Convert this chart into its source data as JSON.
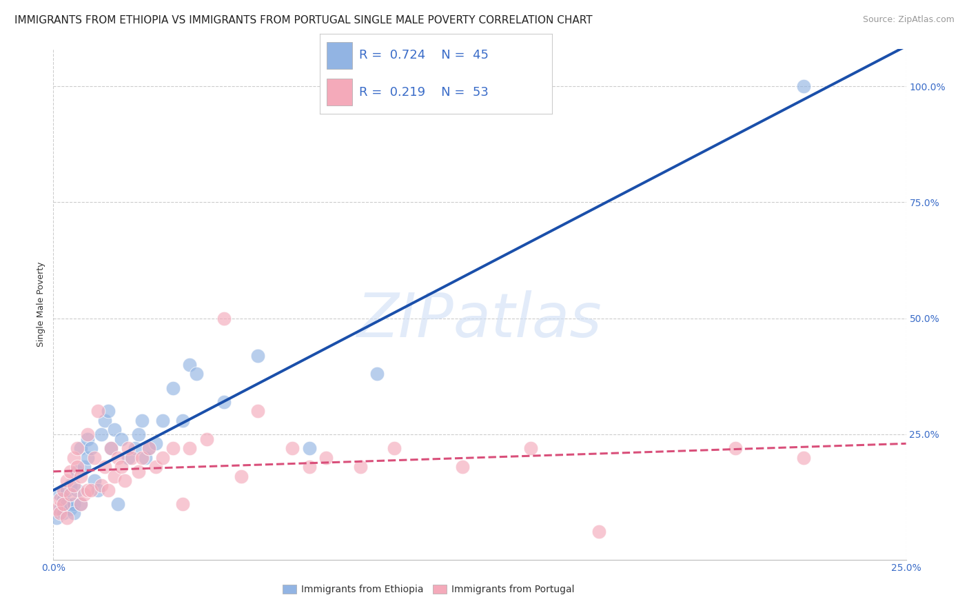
{
  "title": "IMMIGRANTS FROM ETHIOPIA VS IMMIGRANTS FROM PORTUGAL SINGLE MALE POVERTY CORRELATION CHART",
  "source": "Source: ZipAtlas.com",
  "ylabel": "Single Male Poverty",
  "xlim": [
    0.0,
    0.25
  ],
  "ylim": [
    -0.02,
    1.08
  ],
  "ytick_positions": [
    0.25,
    0.5,
    0.75,
    1.0
  ],
  "background_color": "#ffffff",
  "watermark_text": "ZIPatlas",
  "series": [
    {
      "name": "Immigrants from Ethiopia",
      "color": "#92b4e3",
      "R": 0.724,
      "N": 45,
      "line_color": "#1a4faa",
      "line_style": "solid",
      "x": [
        0.001,
        0.002,
        0.002,
        0.003,
        0.003,
        0.004,
        0.004,
        0.005,
        0.005,
        0.006,
        0.006,
        0.007,
        0.007,
        0.008,
        0.008,
        0.009,
        0.01,
        0.01,
        0.011,
        0.012,
        0.013,
        0.014,
        0.015,
        0.016,
        0.017,
        0.018,
        0.019,
        0.02,
        0.022,
        0.024,
        0.025,
        0.026,
        0.027,
        0.028,
        0.03,
        0.032,
        0.035,
        0.038,
        0.04,
        0.042,
        0.05,
        0.06,
        0.075,
        0.095,
        0.22
      ],
      "y": [
        0.07,
        0.09,
        0.12,
        0.08,
        0.11,
        0.1,
        0.13,
        0.09,
        0.14,
        0.1,
        0.08,
        0.13,
        0.17,
        0.1,
        0.22,
        0.18,
        0.2,
        0.24,
        0.22,
        0.15,
        0.13,
        0.25,
        0.28,
        0.3,
        0.22,
        0.26,
        0.1,
        0.24,
        0.2,
        0.22,
        0.25,
        0.28,
        0.2,
        0.22,
        0.23,
        0.28,
        0.35,
        0.28,
        0.4,
        0.38,
        0.32,
        0.42,
        0.22,
        0.38,
        1.0
      ]
    },
    {
      "name": "Immigrants from Portugal",
      "color": "#f4aaba",
      "R": 0.219,
      "N": 53,
      "line_color": "#d94f7a",
      "line_style": "dashed",
      "x": [
        0.001,
        0.002,
        0.002,
        0.003,
        0.003,
        0.004,
        0.004,
        0.005,
        0.005,
        0.006,
        0.006,
        0.007,
        0.007,
        0.008,
        0.008,
        0.009,
        0.01,
        0.01,
        0.011,
        0.012,
        0.013,
        0.014,
        0.015,
        0.016,
        0.017,
        0.018,
        0.019,
        0.02,
        0.021,
        0.022,
        0.023,
        0.025,
        0.026,
        0.028,
        0.03,
        0.032,
        0.035,
        0.038,
        0.04,
        0.045,
        0.05,
        0.055,
        0.06,
        0.07,
        0.075,
        0.08,
        0.09,
        0.1,
        0.12,
        0.14,
        0.16,
        0.2,
        0.22
      ],
      "y": [
        0.09,
        0.11,
        0.08,
        0.13,
        0.1,
        0.15,
        0.07,
        0.12,
        0.17,
        0.14,
        0.2,
        0.18,
        0.22,
        0.1,
        0.16,
        0.12,
        0.25,
        0.13,
        0.13,
        0.2,
        0.3,
        0.14,
        0.18,
        0.13,
        0.22,
        0.16,
        0.2,
        0.18,
        0.15,
        0.22,
        0.2,
        0.17,
        0.2,
        0.22,
        0.18,
        0.2,
        0.22,
        0.1,
        0.22,
        0.24,
        0.5,
        0.16,
        0.3,
        0.22,
        0.18,
        0.2,
        0.18,
        0.22,
        0.18,
        0.22,
        0.04,
        0.22,
        0.2
      ]
    }
  ],
  "title_fontsize": 11,
  "axis_label_fontsize": 9,
  "tick_fontsize": 10,
  "legend_fontsize": 13
}
